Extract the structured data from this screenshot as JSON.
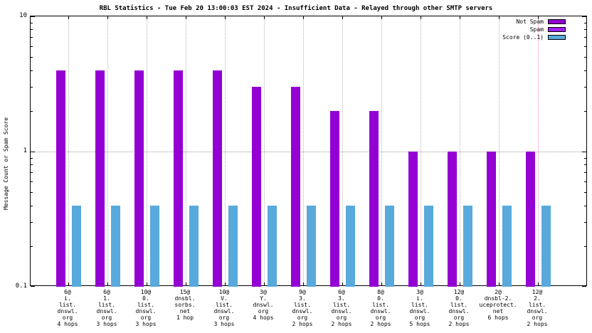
{
  "title": "RBL Statistics - Tue Feb 20 13:00:03 EST 2024 - Insufficient Data - Relayed through other SMTP servers",
  "y_axis": {
    "label": "Message Count or Spam Score",
    "ticks": [
      {
        "value": 10,
        "label": "10"
      },
      {
        "value": 1,
        "label": "1"
      },
      {
        "value": 0.1,
        "label": "0.1"
      }
    ]
  },
  "legend": [
    {
      "label": "Not Spam",
      "color": "#9400d3"
    },
    {
      "label": "Spam",
      "color": "#a020f0"
    },
    {
      "label": "Score (0..1)",
      "color": "#58a9dc"
    }
  ],
  "chart_data": {
    "type": "bar",
    "y_scale": "log",
    "ylim": [
      0.1,
      10
    ],
    "title": "RBL Statistics - Tue Feb 20 13:00:03 EST 2024 - Insufficient Data - Relayed through other SMTP servers",
    "xlabel": "",
    "ylabel": "Message Count or Spam Score",
    "grid": {
      "horizontal_dotted_at": [
        1
      ],
      "vertical_dotted_per_category": true
    },
    "legend_position": "top-right",
    "categories": [
      [
        "6@",
        "i.",
        "list.",
        "dnswl.",
        "org",
        "4 hops"
      ],
      [
        "6@",
        "1.",
        "list.",
        "dnswl.",
        "org",
        "3 hops"
      ],
      [
        "10@",
        "0.",
        "list.",
        "dnswl.",
        "org",
        "3 hops"
      ],
      [
        "15@",
        "dnsbl.",
        "sorbs.",
        "net",
        "1 hop"
      ],
      [
        "10@",
        "V.",
        "list.",
        "dnswl.",
        "org",
        "3 hops"
      ],
      [
        "3@",
        "Y.",
        "dnswl.",
        "org",
        "4 hops"
      ],
      [
        "9@",
        "3.",
        "list.",
        "dnswl.",
        "org",
        "2 hops"
      ],
      [
        "6@",
        "3.",
        "list.",
        "dnswl.",
        "org",
        "2 hops"
      ],
      [
        "8@",
        "0.",
        "list.",
        "dnswl.",
        "org",
        "2 hops"
      ],
      [
        "3@",
        "i.",
        "list.",
        "dnswl.",
        "org",
        "5 hops"
      ],
      [
        "12@",
        "0.",
        "list.",
        "dnswl.",
        "org",
        "2 hops"
      ],
      [
        "2@",
        "dnsbl-2.",
        "uceprotect.",
        "net",
        "6 hops"
      ],
      [
        "12@",
        "2.",
        "list.",
        "dnswl.",
        "org",
        "2 hops"
      ]
    ],
    "series": [
      {
        "name": "Not Spam",
        "color": "#9400d3",
        "values": [
          4,
          4,
          4,
          4,
          4,
          3,
          3,
          2,
          2,
          1,
          1,
          1,
          1
        ]
      },
      {
        "name": "Spam",
        "color": "#a020f0",
        "values": [
          0,
          0,
          0,
          0,
          0,
          0,
          0,
          0,
          0,
          0,
          0,
          0,
          0
        ]
      },
      {
        "name": "Score (0..1)",
        "color": "#58a9dc",
        "values": [
          0.4,
          0.4,
          0.4,
          0.4,
          0.4,
          0.4,
          0.4,
          0.4,
          0.4,
          0.4,
          0.4,
          0.4,
          0.4
        ]
      }
    ],
    "highlight": {
      "category_index": 12,
      "color": "#ff7fd4"
    }
  }
}
